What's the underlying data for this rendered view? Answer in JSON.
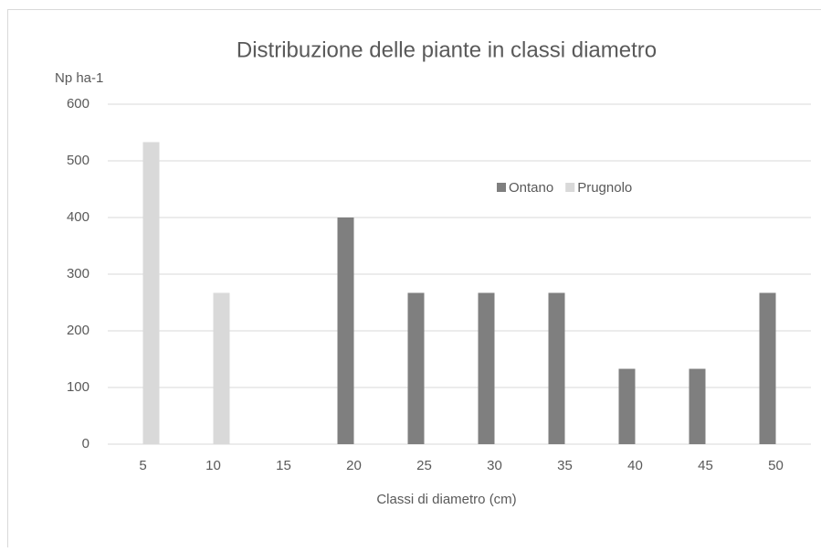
{
  "chart_data": {
    "type": "bar",
    "title": "Distribuzione delle piante in classi diametro",
    "y_axis_label": "Np ha-1",
    "x_axis_label": "Classi di diametro (cm)",
    "categories": [
      "5",
      "10",
      "15",
      "20",
      "25",
      "30",
      "35",
      "40",
      "45",
      "50"
    ],
    "series": [
      {
        "name": "Ontano",
        "color": "#7f7f7f",
        "values": [
          null,
          null,
          null,
          400,
          267,
          267,
          267,
          133,
          133,
          267
        ]
      },
      {
        "name": "Prugnolo",
        "color": "#d9d9d9",
        "values": [
          533,
          267,
          null,
          null,
          null,
          null,
          null,
          null,
          null,
          null
        ]
      }
    ],
    "ylim": [
      0,
      600
    ],
    "yticks": [
      0,
      100,
      200,
      300,
      400,
      500,
      600
    ],
    "grid": true,
    "legend": "inside-top-right"
  }
}
